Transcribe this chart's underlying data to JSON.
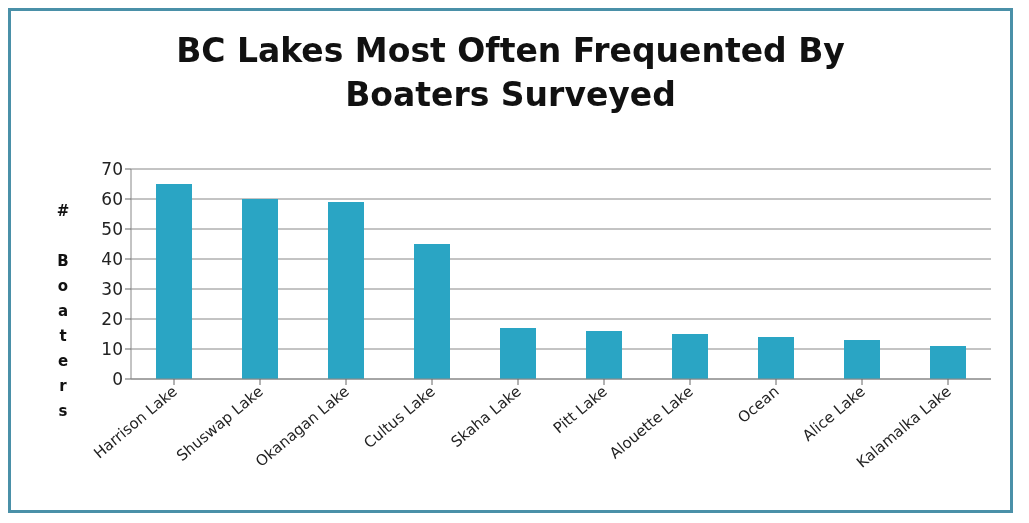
{
  "chart_data": {
    "type": "bar",
    "title": "BC Lakes Most Often Frequented By Boaters Surveyed",
    "ylabel": "# Boaters",
    "categories": [
      "Harrison Lake",
      "Shuswap Lake",
      "Okanagan Lake",
      "Cultus Lake",
      "Skaha Lake",
      "Pitt Lake",
      "Alouette Lake",
      "Ocean",
      "Alice Lake",
      "Kalamalka Lake"
    ],
    "values": [
      65,
      60,
      59,
      45,
      17,
      16,
      15,
      14,
      13,
      11
    ],
    "color": "#2aa5c4",
    "ylim": [
      0,
      70
    ],
    "yticks": [
      0,
      10,
      20,
      30,
      40,
      50,
      60,
      70
    ],
    "grid": "y",
    "legend": false
  }
}
